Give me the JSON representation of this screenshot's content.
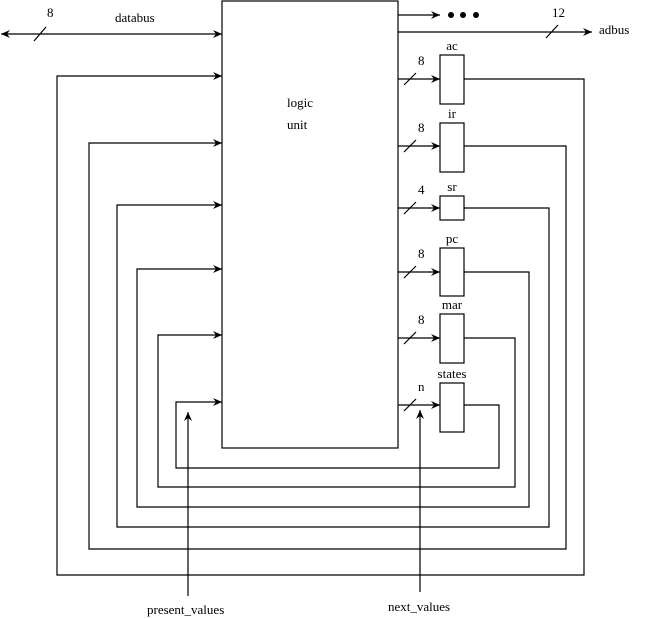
{
  "logic_unit": {
    "line1": "logic",
    "line2": "unit"
  },
  "databus": {
    "label": "databus",
    "width": "8"
  },
  "adbus": {
    "label": "adbus",
    "width": "12"
  },
  "registers": [
    {
      "name": "ac",
      "width": "8"
    },
    {
      "name": "ir",
      "width": "8"
    },
    {
      "name": "sr",
      "width": "4"
    },
    {
      "name": "pc",
      "width": "8"
    },
    {
      "name": "mar",
      "width": "8"
    },
    {
      "name": "states",
      "width": "n"
    }
  ],
  "present_values": "present_values",
  "next_values": "next_values",
  "line_color": "#000000"
}
